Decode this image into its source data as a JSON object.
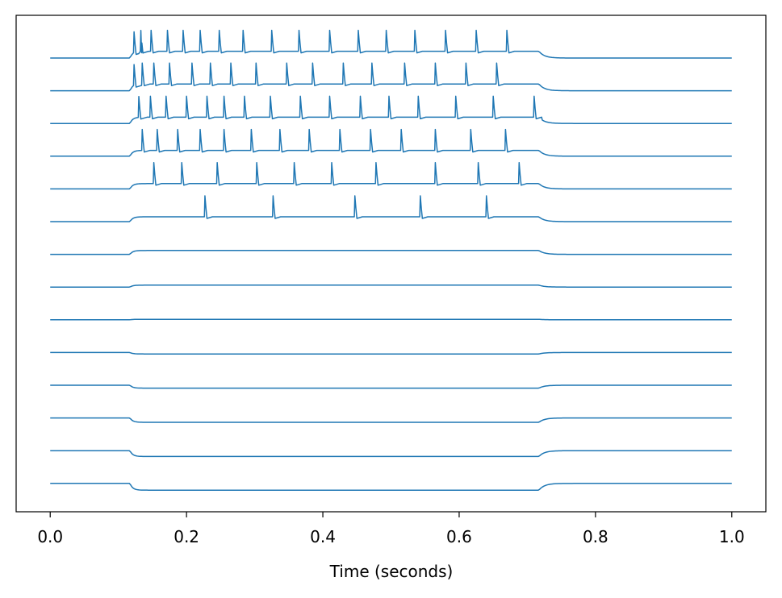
{
  "chart_data": {
    "type": "line",
    "xlabel": "Time (seconds)",
    "ylabel": "",
    "xlim": [
      -0.05,
      1.05
    ],
    "x_ticks": [
      0.0,
      0.2,
      0.4,
      0.6,
      0.8,
      1.0
    ],
    "x_tick_labels": [
      "0.0",
      "0.2",
      "0.4",
      "0.6",
      "0.8",
      "1.0"
    ],
    "y_ticks_visible": false,
    "grid": false,
    "legend": "none",
    "line_color": "#1f77b4",
    "stimulus_window": [
      0.117,
      0.717
    ],
    "traces": [
      {
        "step": 0.14,
        "spikes": [
          0.123,
          0.133,
          0.148,
          0.172,
          0.195,
          0.22,
          0.248,
          0.283,
          0.325,
          0.365,
          0.41,
          0.452,
          0.493,
          0.535,
          0.58,
          0.625,
          0.67
        ]
      },
      {
        "step": 0.14,
        "spikes": [
          0.123,
          0.135,
          0.152,
          0.175,
          0.208,
          0.235,
          0.265,
          0.302,
          0.347,
          0.385,
          0.43,
          0.472,
          0.52,
          0.565,
          0.61,
          0.655
        ]
      },
      {
        "step": 0.13,
        "spikes": [
          0.13,
          0.147,
          0.17,
          0.2,
          0.23,
          0.255,
          0.285,
          0.323,
          0.367,
          0.41,
          0.455,
          0.497,
          0.54,
          0.595,
          0.65,
          0.71
        ]
      },
      {
        "step": 0.12,
        "spikes": [
          0.135,
          0.157,
          0.187,
          0.22,
          0.255,
          0.295,
          0.337,
          0.38,
          0.425,
          0.47,
          0.515,
          0.565,
          0.617,
          0.668
        ]
      },
      {
        "step": 0.11,
        "spikes": [
          0.152,
          0.193,
          0.245,
          0.303,
          0.358,
          0.413,
          0.478,
          0.565,
          0.628,
          0.688
        ]
      },
      {
        "step": 0.1,
        "spikes": [
          0.227,
          0.327,
          0.447,
          0.543,
          0.64
        ]
      },
      {
        "step": 0.08,
        "spikes": []
      },
      {
        "step": 0.04,
        "spikes": []
      },
      {
        "step": 0.01,
        "spikes": []
      },
      {
        "step": -0.03,
        "spikes": []
      },
      {
        "step": -0.06,
        "spikes": []
      },
      {
        "step": -0.09,
        "spikes": []
      },
      {
        "step": -0.12,
        "spikes": []
      },
      {
        "step": -0.14,
        "spikes": []
      }
    ]
  }
}
